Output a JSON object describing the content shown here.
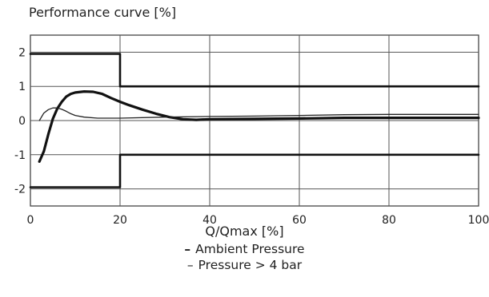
{
  "chart_data": {
    "type": "line",
    "title": "Performance curve [%]",
    "xlabel": "Q/Qmax [%]",
    "ylabel": "",
    "xlim": [
      0,
      100
    ],
    "ylim": [
      -2.5,
      2.5
    ],
    "x_ticks": [
      "0",
      "20",
      "40",
      "60",
      "80",
      "100"
    ],
    "y_ticks": [
      "2",
      "1",
      "0",
      "-1",
      "-2"
    ],
    "grid": true,
    "legend_position": "bottom",
    "legend": [
      {
        "mark": "–",
        "label": "Ambient Pressure",
        "style": "bold"
      },
      {
        "mark": "–",
        "label": "Pressure > 4 bar",
        "style": "thin"
      }
    ],
    "series": [
      {
        "style": "bold",
        "x": [
          2,
          3,
          4,
          5,
          6,
          7,
          8,
          9,
          10,
          12,
          14,
          16,
          18,
          20,
          22,
          25,
          28,
          31,
          34,
          37,
          40,
          50,
          60,
          70,
          80,
          90,
          100
        ],
        "y": [
          -1.2,
          -0.9,
          -0.4,
          0.05,
          0.35,
          0.55,
          0.7,
          0.78,
          0.82,
          0.85,
          0.84,
          0.78,
          0.66,
          0.55,
          0.45,
          0.32,
          0.2,
          0.1,
          0.04,
          0.02,
          0.04,
          0.05,
          0.06,
          0.08,
          0.08,
          0.08,
          0.08
        ]
      },
      {
        "style": "thin",
        "x": [
          2,
          3,
          4,
          5,
          6,
          7,
          8,
          9,
          10,
          12,
          15,
          20,
          30,
          40,
          50,
          60,
          70,
          80,
          90,
          100
        ],
        "y": [
          0,
          0.22,
          0.32,
          0.37,
          0.37,
          0.33,
          0.27,
          0.2,
          0.15,
          0.1,
          0.07,
          0.07,
          0.1,
          0.12,
          0.13,
          0.15,
          0.17,
          0.18,
          0.18,
          0.18
        ]
      },
      {
        "style": "limit",
        "x": [
          0,
          20,
          20,
          100
        ],
        "y": [
          1.95,
          1.95,
          1.0,
          1.0
        ]
      },
      {
        "style": "limit",
        "x": [
          0,
          20,
          20,
          100
        ],
        "y": [
          -1.95,
          -1.95,
          -1.0,
          -1.0
        ]
      }
    ]
  }
}
